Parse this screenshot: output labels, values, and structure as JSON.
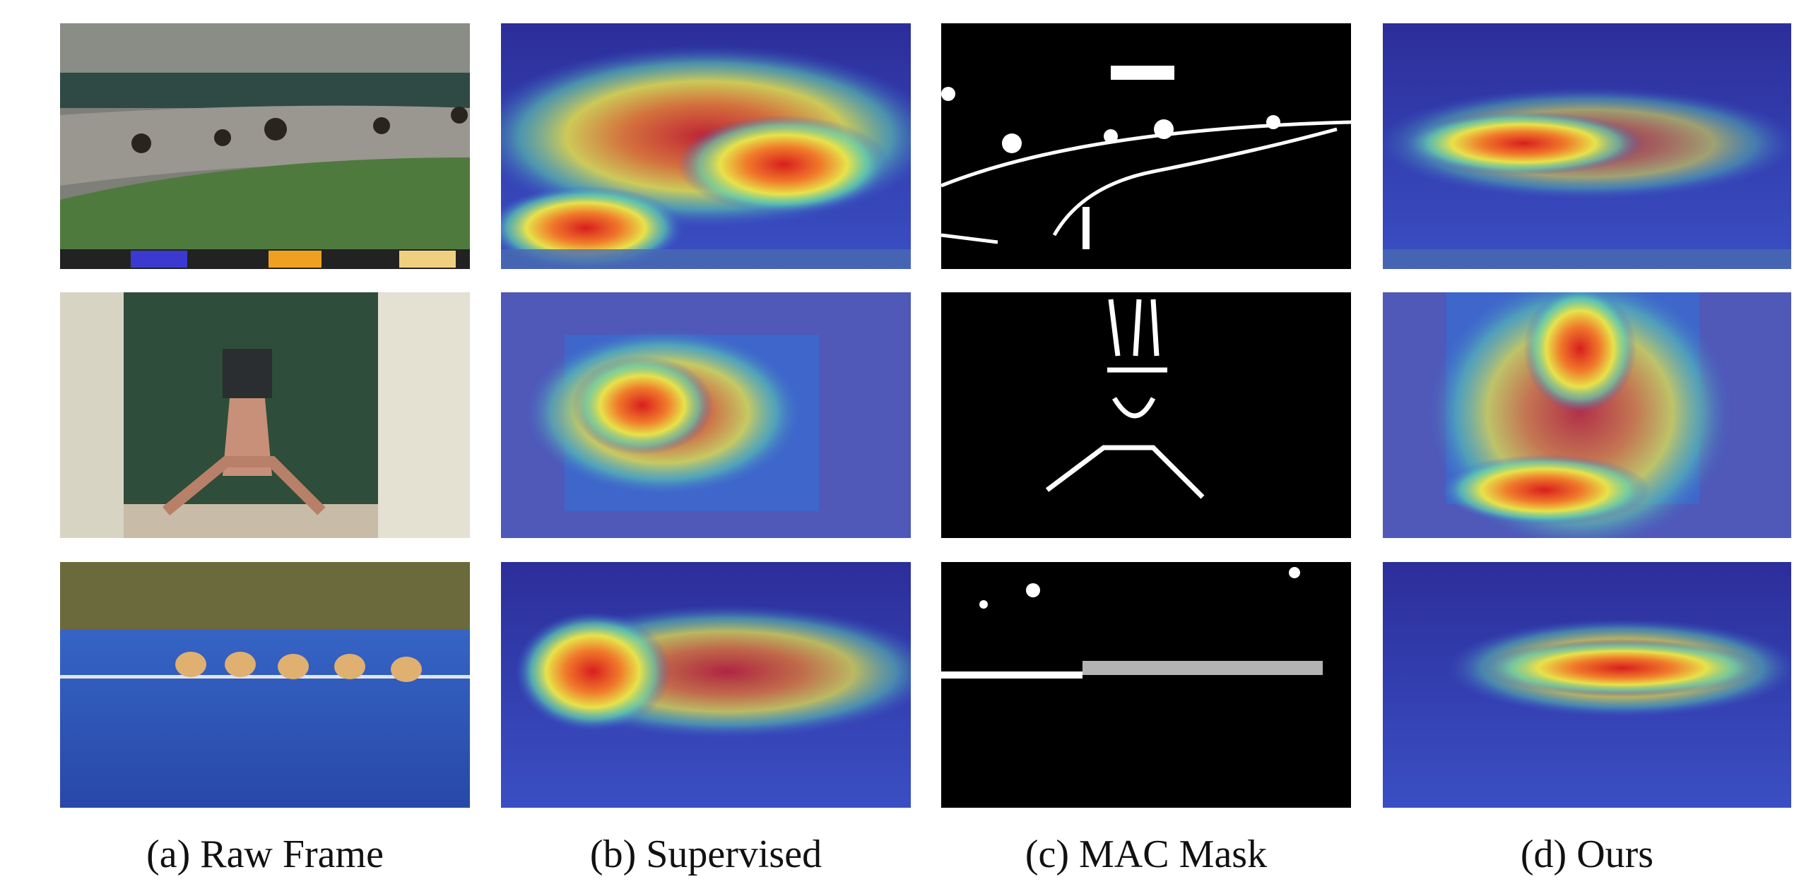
{
  "figure": {
    "captions": [
      "(a) Raw Frame",
      "(b) Supervised",
      "(c) MAC Mask",
      "(d) Ours"
    ]
  }
}
